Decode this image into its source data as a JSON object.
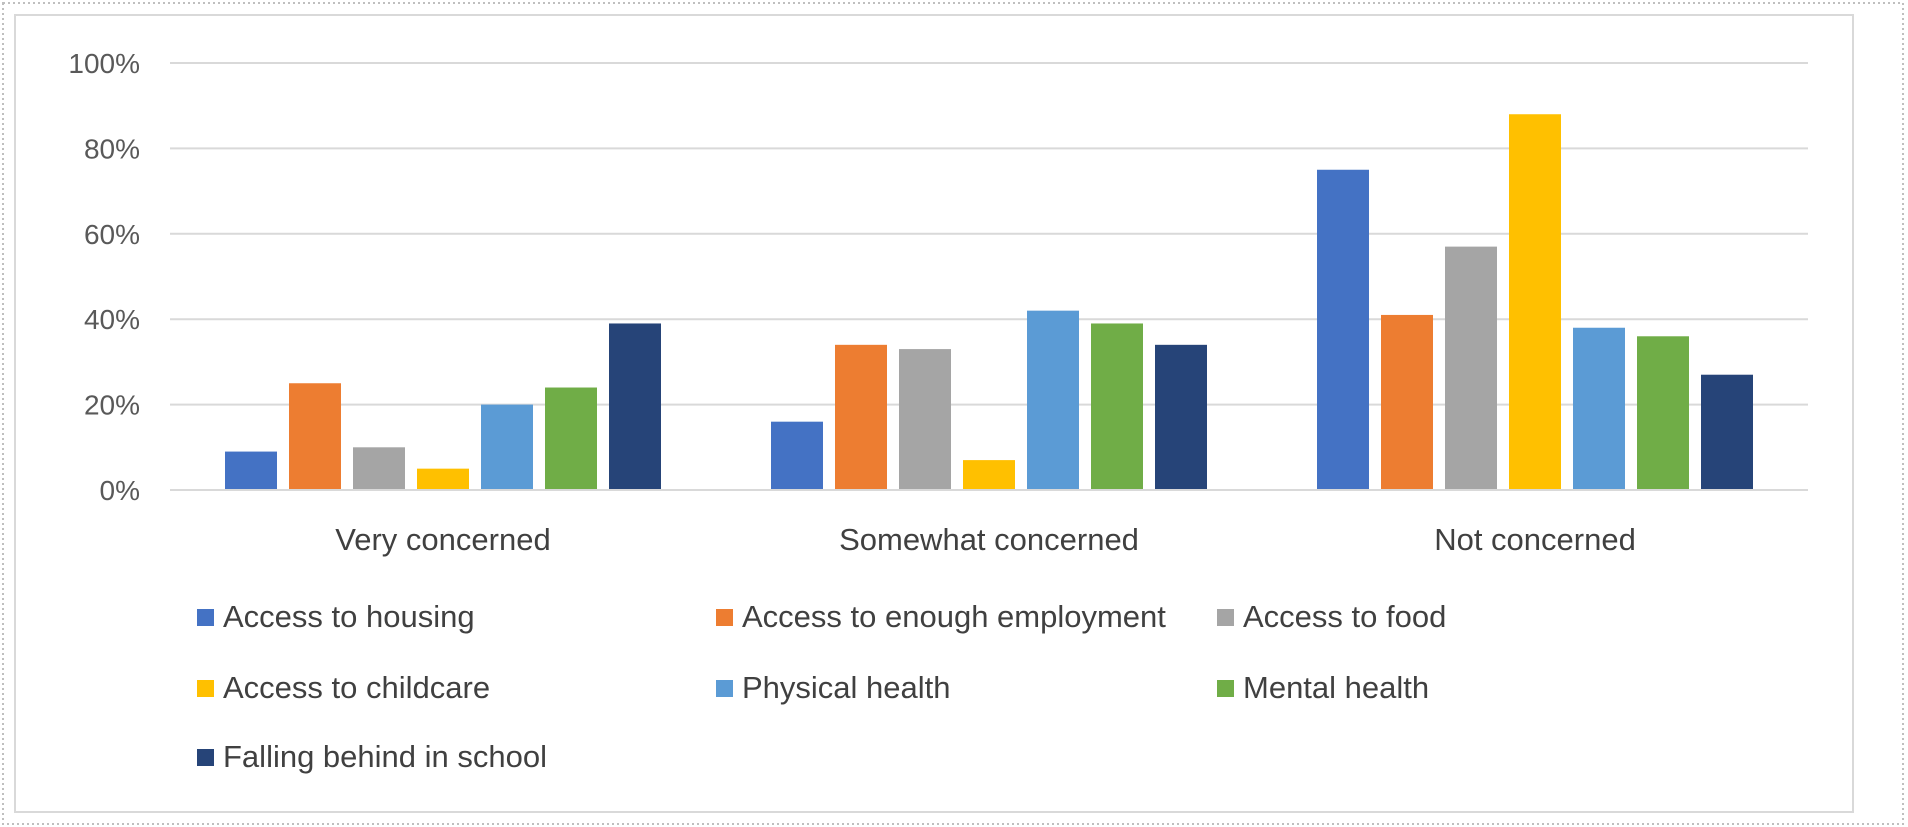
{
  "chart_data": {
    "type": "bar",
    "categories": [
      "Very concerned",
      "Somewhat concerned",
      "Not concerned"
    ],
    "series": [
      {
        "name": "Access to housing",
        "color": "#4472c4",
        "values": [
          9,
          16,
          75
        ]
      },
      {
        "name": "Access to enough employment",
        "color": "#ed7d31",
        "values": [
          25,
          34,
          41
        ]
      },
      {
        "name": "Access to food",
        "color": "#a5a5a5",
        "values": [
          10,
          33,
          57
        ]
      },
      {
        "name": "Access to childcare",
        "color": "#ffc000",
        "values": [
          5,
          7,
          88
        ]
      },
      {
        "name": "Physical health",
        "color": "#5b9bd5",
        "values": [
          20,
          42,
          38
        ]
      },
      {
        "name": "Mental health",
        "color": "#70ad47",
        "values": [
          24,
          39,
          36
        ]
      },
      {
        "name": "Falling behind in school",
        "color": "#264478",
        "values": [
          39,
          34,
          27
        ]
      }
    ],
    "ylim": [
      0,
      100
    ],
    "yticks": [
      0,
      20,
      40,
      60,
      80,
      100
    ],
    "ytick_labels": [
      "0%",
      "20%",
      "40%",
      "60%",
      "80%",
      "100%"
    ],
    "grid": true,
    "legend_position": "bottom",
    "title": "",
    "xlabel": "",
    "ylabel": ""
  }
}
